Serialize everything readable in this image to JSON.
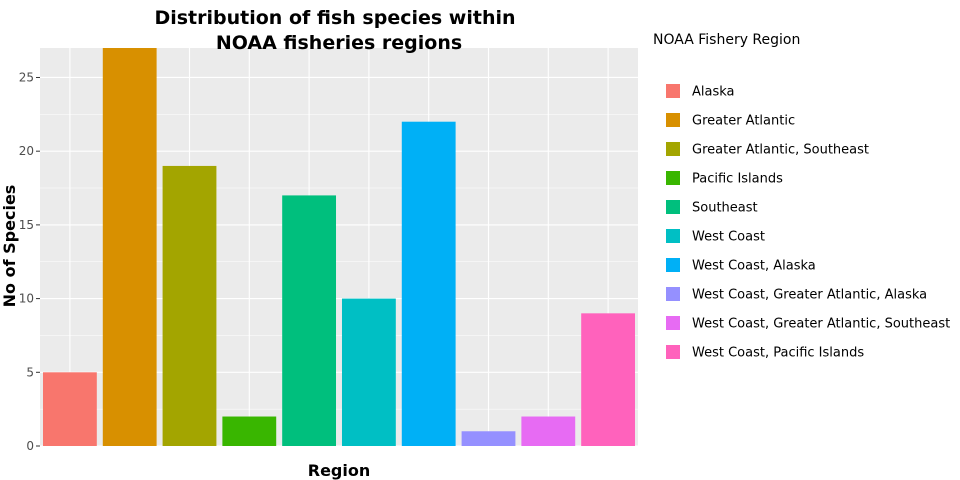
{
  "chart_data": {
    "type": "bar",
    "title_lines": [
      "Distribution of fish species within",
      "NOAA fisheries regions"
    ],
    "xlabel": "Region",
    "ylabel": "No of Species",
    "ylim": [
      0,
      27
    ],
    "yticks": [
      0,
      5,
      10,
      15,
      20,
      25
    ],
    "grid": true,
    "legend_title": "NOAA Fishery Region",
    "legend_position": "right",
    "categories": [
      "Alaska",
      "Greater Atlantic",
      "Greater Atlantic, Southeast",
      "Pacific Islands",
      "Southeast",
      "West Coast",
      "West Coast, Alaska",
      "West Coast, Greater Atlantic, Alaska",
      "West Coast, Greater Atlantic, Southeast",
      "West Coast, Pacific Islands"
    ],
    "values": [
      5,
      27,
      19,
      2,
      17,
      10,
      22,
      1,
      2,
      9
    ],
    "colors": [
      "#F8766D",
      "#D89000",
      "#A3A500",
      "#39B600",
      "#00BF7D",
      "#00BFC4",
      "#00B0F6",
      "#9590FF",
      "#E76BF3",
      "#FF62BC"
    ],
    "panel_background": "#EBEBEB",
    "grid_color": "#FFFFFF"
  }
}
